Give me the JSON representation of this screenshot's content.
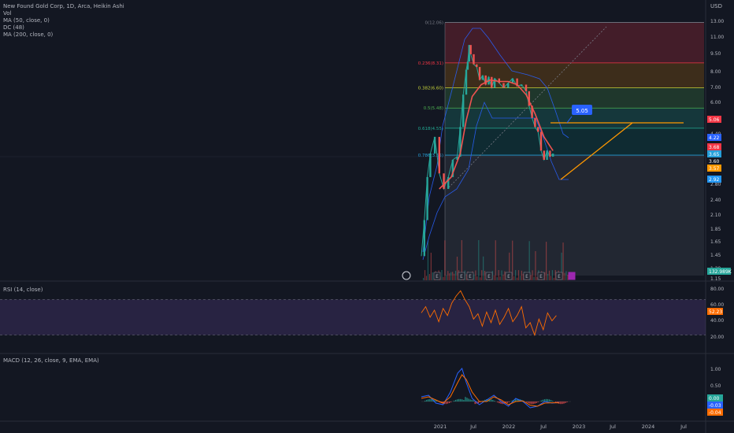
{
  "header": {
    "symbol_line": "New Found Gold Corp, 1D, Arca, Heikin Ashi",
    "indicators": [
      "Vol",
      "MA (50, close, 0)",
      "DC (48)",
      "MA (200, close, 0)"
    ],
    "currency": "USD"
  },
  "chart_data": [
    {
      "type": "line",
      "panel": "price",
      "x_ticks": [
        "2021",
        "Jul",
        "2022",
        "Jul",
        "2023",
        "Jul",
        "2024",
        "Jul"
      ],
      "y_scale": "log",
      "y_ticks": [
        "13.00",
        "11.00",
        "9.50",
        "8.00",
        "7.00",
        "6.00",
        "4.40",
        "3.60",
        "2.80",
        "2.40",
        "2.10",
        "1.85",
        "1.65",
        "1.45",
        "1.29",
        "1.15"
      ],
      "series": [
        {
          "values": [
            [
              0.0,
              1.4
            ],
            [
              0.02,
              1.95
            ],
            [
              0.04,
              2.9
            ],
            [
              0.06,
              3.6
            ],
            [
              0.09,
              4.2
            ],
            [
              0.12,
              3.0
            ],
            [
              0.15,
              2.6
            ],
            [
              0.18,
              2.9
            ],
            [
              0.21,
              3.4
            ],
            [
              0.24,
              3.5
            ],
            [
              0.26,
              4.6
            ],
            [
              0.28,
              6.2
            ],
            [
              0.3,
              7.8
            ],
            [
              0.31,
              8.4
            ],
            [
              0.32,
              9.8
            ],
            [
              0.33,
              9.0
            ],
            [
              0.35,
              8.2
            ],
            [
              0.37,
              8.0
            ],
            [
              0.39,
              7.1
            ],
            [
              0.41,
              7.4
            ],
            [
              0.43,
              6.8
            ],
            [
              0.45,
              7.3
            ],
            [
              0.47,
              6.6
            ],
            [
              0.49,
              7.2
            ],
            [
              0.52,
              6.9
            ],
            [
              0.55,
              6.6
            ],
            [
              0.58,
              6.9
            ],
            [
              0.61,
              7.2
            ],
            [
              0.64,
              6.7
            ],
            [
              0.67,
              6.8
            ],
            [
              0.7,
              6.4
            ],
            [
              0.72,
              5.6
            ],
            [
              0.74,
              5.0
            ],
            [
              0.76,
              4.6
            ],
            [
              0.78,
              4.4
            ],
            [
              0.8,
              3.7
            ],
            [
              0.82,
              3.4
            ],
            [
              0.84,
              3.7
            ],
            [
              0.86,
              3.5
            ],
            [
              0.88,
              3.6
            ]
          ]
        },
        {
          "values": [
            [
              0.12,
              2.6
            ],
            [
              0.2,
              2.9
            ],
            [
              0.26,
              3.6
            ],
            [
              0.3,
              4.9
            ],
            [
              0.34,
              6.1
            ],
            [
              0.4,
              6.8
            ],
            [
              0.46,
              7.1
            ],
            [
              0.52,
              7.0
            ],
            [
              0.58,
              7.0
            ],
            [
              0.64,
              6.8
            ],
            [
              0.7,
              6.2
            ],
            [
              0.76,
              5.2
            ],
            [
              0.82,
              4.2
            ],
            [
              0.88,
              3.7
            ]
          ]
        }
      ],
      "fibonacci": [
        {
          "label": "0(12.06)",
          "level": 12.06,
          "color": "#787b86"
        },
        {
          "label": "0.236(8.31)",
          "level": 8.31,
          "color": "#f23645"
        },
        {
          "label": "0.382(6.60)",
          "level": 6.6,
          "color": "#c7d33a"
        },
        {
          "label": "0.5(5.48)",
          "level": 5.48,
          "color": "#4caf50"
        },
        {
          "label": "0.618(4.55)",
          "level": 4.55,
          "color": "#22ab94"
        },
        {
          "label": "0.786(3.55)",
          "level": 3.55,
          "color": "#26a0da"
        }
      ],
      "callout": "5.05",
      "price_labels": [
        {
          "text": "5.06",
          "color": "#f23645"
        },
        {
          "text": "4.22",
          "color": "#2962ff"
        },
        {
          "text": "3.68",
          "color": "#f23645"
        },
        {
          "text": "3.65",
          "color": "#26a0da"
        },
        {
          "text": "3.60",
          "color": "#131722"
        },
        {
          "text": "3.57",
          "color": "#ff9800"
        },
        {
          "text": "2.92",
          "color": "#2196f3"
        },
        {
          "text": "132.989K",
          "color": "#26a69a"
        }
      ]
    },
    {
      "type": "line",
      "panel": "rsi",
      "title": "RSI (14, close)",
      "y_ticks": [
        "80.00",
        "60.00",
        "40.00",
        "20.00"
      ],
      "current": "52.23",
      "series": [
        {
          "values": [
            [
              0.0,
              55
            ],
            [
              0.03,
              62
            ],
            [
              0.06,
              50
            ],
            [
              0.09,
              58
            ],
            [
              0.12,
              45
            ],
            [
              0.15,
              60
            ],
            [
              0.18,
              52
            ],
            [
              0.21,
              66
            ],
            [
              0.24,
              74
            ],
            [
              0.27,
              80
            ],
            [
              0.3,
              70
            ],
            [
              0.33,
              62
            ],
            [
              0.36,
              48
            ],
            [
              0.39,
              54
            ],
            [
              0.42,
              40
            ],
            [
              0.45,
              56
            ],
            [
              0.48,
              44
            ],
            [
              0.51,
              58
            ],
            [
              0.54,
              42
            ],
            [
              0.57,
              50
            ],
            [
              0.6,
              60
            ],
            [
              0.63,
              45
            ],
            [
              0.66,
              52
            ],
            [
              0.69,
              62
            ],
            [
              0.72,
              38
            ],
            [
              0.75,
              44
            ],
            [
              0.78,
              30
            ],
            [
              0.81,
              48
            ],
            [
              0.84,
              36
            ],
            [
              0.87,
              55
            ],
            [
              0.9,
              46
            ],
            [
              0.93,
              52
            ]
          ]
        }
      ]
    },
    {
      "type": "line",
      "panel": "macd",
      "title": "MACD (12, 26, close, 9, EMA, EMA)",
      "y_ticks": [
        "1.00",
        "0.50"
      ],
      "current_labels": [
        {
          "text": "0.00",
          "color": "#26a69a"
        },
        {
          "text": "-0.03",
          "color": "#2962ff"
        },
        {
          "text": "-0.04",
          "color": "#ff6d00"
        }
      ],
      "series": [
        {
          "values": [
            [
              0.0,
              0.15
            ],
            [
              0.05,
              0.2
            ],
            [
              0.1,
              -0.05
            ],
            [
              0.15,
              -0.1
            ],
            [
              0.2,
              0.3
            ],
            [
              0.25,
              0.9
            ],
            [
              0.28,
              1.05
            ],
            [
              0.31,
              0.6
            ],
            [
              0.35,
              0.1
            ],
            [
              0.4,
              -0.1
            ],
            [
              0.45,
              0.05
            ],
            [
              0.5,
              0.2
            ],
            [
              0.55,
              0.0
            ],
            [
              0.6,
              -0.15
            ],
            [
              0.65,
              0.1
            ],
            [
              0.7,
              0.0
            ],
            [
              0.75,
              -0.2
            ],
            [
              0.8,
              -0.15
            ],
            [
              0.85,
              0.0
            ],
            [
              0.9,
              -0.05
            ],
            [
              0.95,
              -0.03
            ]
          ]
        },
        {
          "values": [
            [
              0.0,
              0.1
            ],
            [
              0.05,
              0.15
            ],
            [
              0.1,
              0.05
            ],
            [
              0.15,
              -0.05
            ],
            [
              0.2,
              0.15
            ],
            [
              0.25,
              0.6
            ],
            [
              0.28,
              0.85
            ],
            [
              0.31,
              0.7
            ],
            [
              0.35,
              0.3
            ],
            [
              0.4,
              0.0
            ],
            [
              0.45,
              0.0
            ],
            [
              0.5,
              0.15
            ],
            [
              0.55,
              0.05
            ],
            [
              0.6,
              -0.1
            ],
            [
              0.65,
              0.0
            ],
            [
              0.7,
              0.02
            ],
            [
              0.75,
              -0.12
            ],
            [
              0.8,
              -0.15
            ],
            [
              0.85,
              -0.05
            ],
            [
              0.9,
              -0.04
            ],
            [
              0.95,
              -0.04
            ]
          ]
        }
      ]
    }
  ]
}
